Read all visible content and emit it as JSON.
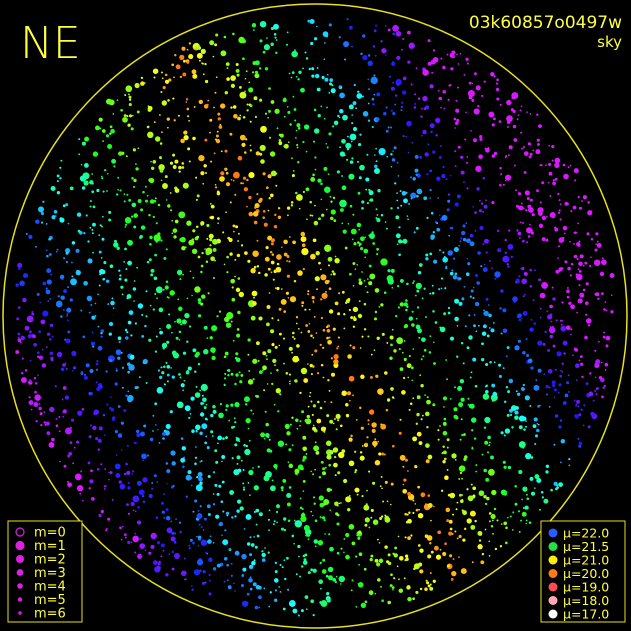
{
  "header": {
    "direction": "NE",
    "image_id": "03k60857o0497w",
    "mode": "sky"
  },
  "magnitude_legend": {
    "color": "#e020e0",
    "entries": [
      {
        "label": "m=0",
        "hollow": true,
        "radius": 4
      },
      {
        "label": "m=1",
        "radius": 4
      },
      {
        "label": "m=2",
        "radius": 3.4
      },
      {
        "label": "m=3",
        "radius": 2.8
      },
      {
        "label": "m=4",
        "radius": 2.2
      },
      {
        "label": "m=5",
        "radius": 1.6
      },
      {
        "label": "m=6",
        "radius": 1.1
      }
    ]
  },
  "brightness_legend": {
    "entries": [
      {
        "label": "μ=22.0",
        "color": "#2a5cff"
      },
      {
        "label": "μ=21.5",
        "color": "#22e046"
      },
      {
        "label": "μ=21.0",
        "color": "#ffee00"
      },
      {
        "label": "μ=20.0",
        "color": "#ff7a1a"
      },
      {
        "label": "μ=19.0",
        "color": "#ff4a5a"
      },
      {
        "label": "μ=18.0",
        "color": "#ffa8b8"
      },
      {
        "label": "μ=17.0",
        "color": "#ffffff"
      }
    ]
  }
}
